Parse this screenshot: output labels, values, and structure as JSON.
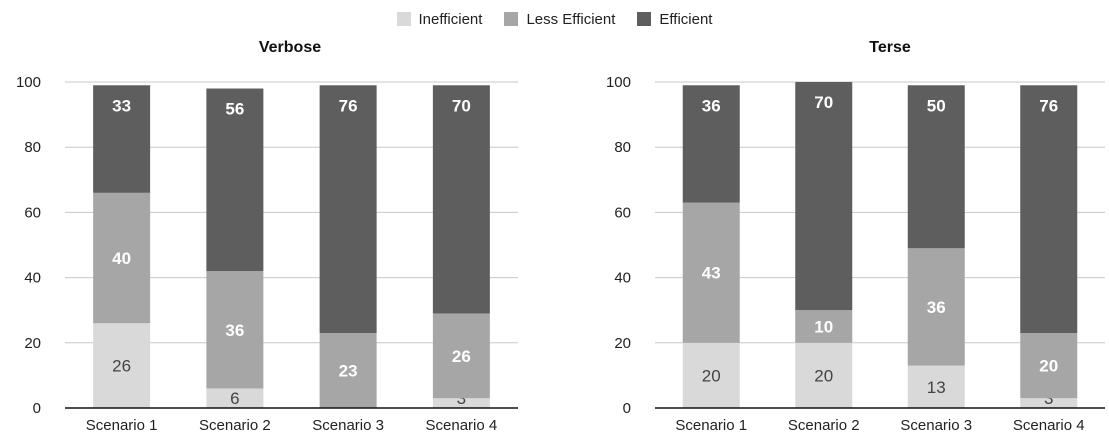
{
  "legend": [
    {
      "label": "Inefficient",
      "color": "#d9d9d9"
    },
    {
      "label": "Less Efficient",
      "color": "#a6a6a6"
    },
    {
      "label": "Efficient",
      "color": "#5e5e5e"
    }
  ],
  "chart_data": [
    {
      "type": "bar",
      "stacked": true,
      "title": "Verbose",
      "categories": [
        "Scenario 1",
        "Scenario 2",
        "Scenario 3",
        "Scenario 4"
      ],
      "series": [
        {
          "name": "Inefficient",
          "values": [
            26,
            6,
            0,
            3
          ]
        },
        {
          "name": "Less Efficient",
          "values": [
            40,
            36,
            23,
            26
          ]
        },
        {
          "name": "Efficient",
          "values": [
            33,
            56,
            76,
            70
          ]
        }
      ],
      "yticks": [
        0,
        20,
        40,
        60,
        80,
        100
      ],
      "ylim": [
        0,
        100
      ],
      "grid": true,
      "legend": "top-center"
    },
    {
      "type": "bar",
      "stacked": true,
      "title": "Terse",
      "categories": [
        "Scenario 1",
        "Scenario 2",
        "Scenario 3",
        "Scenario 4"
      ],
      "series": [
        {
          "name": "Inefficient",
          "values": [
            20,
            20,
            13,
            3
          ]
        },
        {
          "name": "Less Efficient",
          "values": [
            43,
            10,
            36,
            20
          ]
        },
        {
          "name": "Efficient",
          "values": [
            36,
            70,
            50,
            76
          ]
        }
      ],
      "yticks": [
        0,
        20,
        40,
        60,
        80,
        100
      ],
      "ylim": [
        0,
        100
      ],
      "grid": true,
      "legend": "top-center"
    }
  ]
}
